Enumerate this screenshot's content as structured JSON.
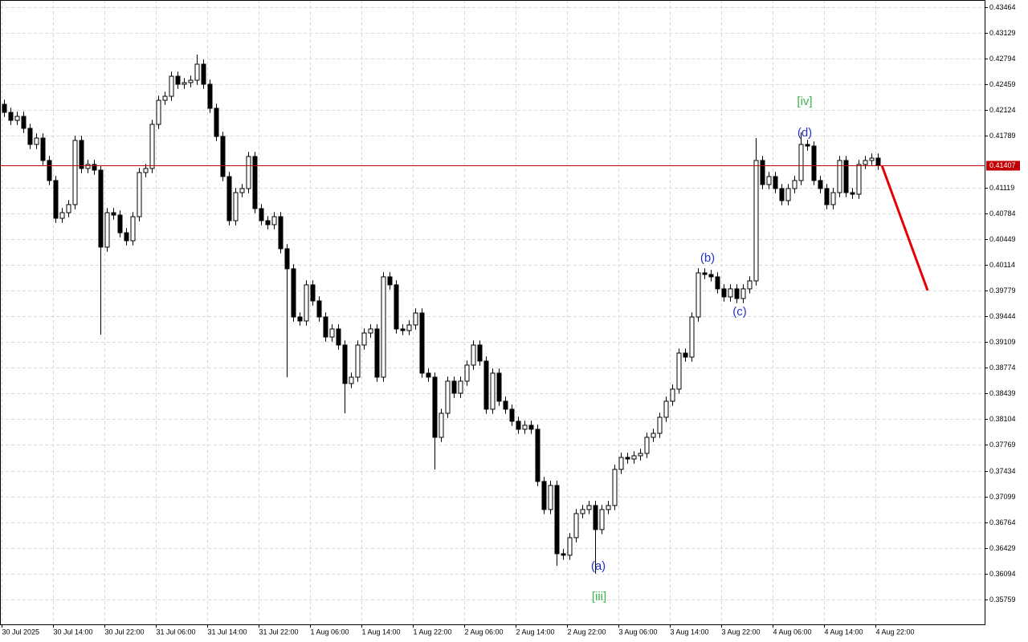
{
  "chart_data": {
    "type": "candlestick",
    "up_color": "#ffffff",
    "down_color": "#000000",
    "grid": true,
    "ylim": [
      0.35435,
      0.43558
    ],
    "yticks": [
      0.43464,
      0.43129,
      0.42794,
      0.42459,
      0.42124,
      0.41789,
      0.41119,
      0.40784,
      0.40449,
      0.40114,
      0.39779,
      0.39444,
      0.39109,
      0.38774,
      0.38439,
      0.38104,
      0.37769,
      0.37434,
      0.37099,
      0.36764,
      0.36429,
      0.36094,
      0.35759
    ],
    "categories": [
      "30 Jul 2025",
      null,
      null,
      null,
      null,
      null,
      null,
      null,
      "30 Jul 14:00",
      null,
      null,
      null,
      null,
      null,
      null,
      null,
      "30 Jul 22:00",
      null,
      null,
      null,
      null,
      null,
      null,
      null,
      "31 Jul 06:00",
      null,
      null,
      null,
      null,
      null,
      null,
      null,
      "31 Jul 14:00",
      null,
      null,
      null,
      null,
      null,
      null,
      null,
      "31 Jul 22:00",
      null,
      null,
      null,
      null,
      null,
      null,
      null,
      "1 Aug 06:00",
      null,
      null,
      null,
      null,
      null,
      null,
      null,
      "1 Aug 14:00",
      null,
      null,
      null,
      null,
      null,
      null,
      null,
      "1 Aug 22:00",
      null,
      null,
      null,
      null,
      null,
      null,
      null,
      "2 Aug 06:00",
      null,
      null,
      null,
      null,
      null,
      null,
      null,
      "2 Aug 14:00",
      null,
      null,
      null,
      null,
      null,
      null,
      null,
      "2 Aug 22:00",
      null,
      null,
      null,
      null,
      null,
      null,
      null,
      "3 Aug 06:00",
      null,
      null,
      null,
      null,
      null,
      null,
      null,
      "3 Aug 14:00",
      null,
      null,
      null,
      null,
      null,
      null,
      null,
      "3 Aug 22:00",
      null,
      null,
      null,
      null,
      null,
      null,
      null,
      "4 Aug 06:00",
      null,
      null,
      null,
      null,
      null,
      null,
      null,
      "4 Aug 14:00",
      null,
      null,
      null,
      null,
      null,
      null,
      null,
      "4 Aug 22:00"
    ],
    "open": [
      0.42201,
      0.42096,
      0.41992,
      0.42044,
      0.41888,
      0.41679,
      0.41762,
      0.4147,
      0.41209,
      0.40718,
      0.40791,
      0.40896,
      0.41731,
      0.41366,
      0.41418,
      0.41345,
      0.40343,
      0.40791,
      0.4076,
      0.4053,
      0.40426,
      0.40739,
      0.41313,
      0.41366,
      0.4194,
      0.42253,
      0.42305,
      0.42566,
      0.42462,
      0.42483,
      0.42514,
      0.42723,
      0.42462,
      0.42149,
      0.41783,
      0.41261,
      0.40687,
      0.41052,
      0.41105,
      0.41522,
      0.40844,
      0.40687,
      0.40635,
      0.40739,
      0.40322,
      0.40061,
      0.39434,
      0.39382,
      0.39852,
      0.39643,
      0.39434,
      0.39173,
      0.39278,
      0.39069,
      0.38568,
      0.38651,
      0.39069,
      0.39225,
      0.39278,
      0.38651,
      0.39956,
      0.39852,
      0.39278,
      0.39257,
      0.3933,
      0.39486,
      0.38703,
      0.38651,
      0.37868,
      0.38181,
      0.38599,
      0.38442,
      0.38599,
      0.38808,
      0.39069,
      0.3886,
      0.38234,
      0.38703,
      0.38338,
      0.38234,
      0.38077,
      0.37973,
      0.38025,
      0.37973,
      0.37294,
      0.36929,
      0.37242,
      0.36354,
      0.36334,
      0.36563,
      0.36876,
      0.36929,
      0.36981,
      0.36668,
      0.36929,
      0.36981,
      0.37451,
      0.37607,
      0.37586,
      0.37628,
      0.37659,
      0.37868,
      0.3792,
      0.38129,
      0.38338,
      0.38495,
      0.38964,
      0.38912,
      0.39434,
      0.40008,
      0.39987,
      0.39956,
      0.398,
      0.39695,
      0.398,
      0.39674,
      0.398,
      0.39904,
      0.4147,
      0.41157,
      0.41261,
      0.41105,
      0.40948,
      0.41105,
      0.41209,
      0.41679,
      0.41658,
      0.41209,
      0.41105,
      0.40896,
      0.41052,
      0.4147,
      0.41052,
      0.41031,
      0.41418,
      0.4147,
      0.41501
    ],
    "high": [
      0.42261,
      0.42156,
      0.42104,
      0.42104,
      0.41948,
      0.41822,
      0.41822,
      0.4153,
      0.41269,
      0.40851,
      0.40956,
      0.41791,
      0.41791,
      0.41478,
      0.41478,
      0.41405,
      0.40851,
      0.40851,
      0.4082,
      0.4059,
      0.40799,
      0.41373,
      0.41426,
      0.42,
      0.42313,
      0.42365,
      0.42626,
      0.42626,
      0.42543,
      0.42574,
      0.42848,
      0.42783,
      0.42522,
      0.42209,
      0.41843,
      0.41321,
      0.41112,
      0.41165,
      0.41582,
      0.41582,
      0.40904,
      0.40747,
      0.40799,
      0.40799,
      0.40382,
      0.40121,
      0.39494,
      0.39912,
      0.39912,
      0.39703,
      0.39494,
      0.39338,
      0.39338,
      0.39129,
      0.38711,
      0.39129,
      0.39285,
      0.39338,
      0.39338,
      0.40016,
      0.40016,
      0.39912,
      0.39338,
      0.3939,
      0.39546,
      0.39546,
      0.38763,
      0.38711,
      0.38241,
      0.38659,
      0.38659,
      0.38659,
      0.38868,
      0.39129,
      0.39129,
      0.3892,
      0.38763,
      0.38763,
      0.38398,
      0.38294,
      0.38137,
      0.38085,
      0.38085,
      0.38033,
      0.37354,
      0.37302,
      0.37302,
      0.36414,
      0.36623,
      0.36936,
      0.36989,
      0.37041,
      0.37041,
      0.36989,
      0.37041,
      0.37511,
      0.37667,
      0.37667,
      0.37688,
      0.37719,
      0.37928,
      0.3798,
      0.38189,
      0.38398,
      0.38555,
      0.39024,
      0.39024,
      0.39494,
      0.40068,
      0.40068,
      0.40047,
      0.40016,
      0.3986,
      0.3986,
      0.3986,
      0.3986,
      0.39964,
      0.41762,
      0.4153,
      0.41321,
      0.41321,
      0.41165,
      0.41165,
      0.41269,
      0.41835,
      0.41739,
      0.41718,
      0.41269,
      0.41165,
      0.41112,
      0.4153,
      0.4153,
      0.41112,
      0.41478,
      0.4153,
      0.41561,
      0.41561
    ],
    "low": [
      0.42036,
      0.41932,
      0.41932,
      0.41828,
      0.41619,
      0.41619,
      0.4141,
      0.41149,
      0.40658,
      0.40658,
      0.40731,
      0.40836,
      0.41306,
      0.41306,
      0.41285,
      0.39205,
      0.40283,
      0.407,
      0.4047,
      0.40366,
      0.40366,
      0.40679,
      0.41253,
      0.41306,
      0.4188,
      0.42193,
      0.42245,
      0.42402,
      0.42402,
      0.42423,
      0.42454,
      0.42402,
      0.42089,
      0.41723,
      0.41201,
      0.40627,
      0.40627,
      0.40992,
      0.41045,
      0.40784,
      0.40627,
      0.40575,
      0.40575,
      0.40262,
      0.38651,
      0.39374,
      0.39322,
      0.39322,
      0.39583,
      0.39374,
      0.39113,
      0.39113,
      0.39009,
      0.38181,
      0.38508,
      0.38591,
      0.39009,
      0.39165,
      0.38591,
      0.38591,
      0.39792,
      0.39218,
      0.39197,
      0.39197,
      0.3927,
      0.38643,
      0.38591,
      0.37451,
      0.37808,
      0.38121,
      0.38382,
      0.38382,
      0.38539,
      0.38748,
      0.388,
      0.38174,
      0.38174,
      0.38278,
      0.38174,
      0.38017,
      0.37913,
      0.37913,
      0.37913,
      0.37234,
      0.36869,
      0.36869,
      0.36198,
      0.36274,
      0.36274,
      0.36503,
      0.36816,
      0.36869,
      0.36094,
      0.36608,
      0.36869,
      0.36921,
      0.37391,
      0.37526,
      0.37526,
      0.37568,
      0.37599,
      0.37808,
      0.3786,
      0.38069,
      0.38278,
      0.38435,
      0.38852,
      0.38852,
      0.39374,
      0.39927,
      0.39896,
      0.3974,
      0.39635,
      0.39635,
      0.39614,
      0.39614,
      0.3974,
      0.39844,
      0.41097,
      0.41097,
      0.41045,
      0.40888,
      0.40888,
      0.41045,
      0.41149,
      0.41598,
      0.41149,
      0.41045,
      0.40836,
      0.40836,
      0.40992,
      0.40992,
      0.40971,
      0.40971,
      0.41358,
      0.4141,
      0.41347
    ],
    "close": [
      0.42096,
      0.41992,
      0.42044,
      0.41888,
      0.41679,
      0.41762,
      0.4147,
      0.41209,
      0.40718,
      0.40791,
      0.40896,
      0.41731,
      0.41366,
      0.41418,
      0.41345,
      0.40343,
      0.40791,
      0.4076,
      0.4053,
      0.40426,
      0.40739,
      0.41313,
      0.41366,
      0.4194,
      0.42253,
      0.42305,
      0.42566,
      0.42462,
      0.42483,
      0.42514,
      0.42723,
      0.42462,
      0.42149,
      0.41783,
      0.41261,
      0.40687,
      0.41052,
      0.41105,
      0.41522,
      0.40844,
      0.40687,
      0.40635,
      0.40739,
      0.40322,
      0.40061,
      0.39434,
      0.39382,
      0.39852,
      0.39643,
      0.39434,
      0.39173,
      0.39278,
      0.39069,
      0.38568,
      0.38651,
      0.39069,
      0.39225,
      0.39278,
      0.38651,
      0.39956,
      0.39852,
      0.39278,
      0.39257,
      0.3933,
      0.39486,
      0.38703,
      0.38651,
      0.37868,
      0.38181,
      0.38599,
      0.38442,
      0.38599,
      0.38808,
      0.39069,
      0.3886,
      0.38234,
      0.38703,
      0.38338,
      0.38234,
      0.38077,
      0.37973,
      0.38025,
      0.37973,
      0.37294,
      0.36929,
      0.37242,
      0.36354,
      0.36334,
      0.36563,
      0.36876,
      0.36929,
      0.36981,
      0.36668,
      0.36929,
      0.36981,
      0.37451,
      0.37607,
      0.37586,
      0.37628,
      0.37659,
      0.37868,
      0.3792,
      0.38129,
      0.38338,
      0.38495,
      0.38964,
      0.38912,
      0.39434,
      0.40008,
      0.39987,
      0.39956,
      0.398,
      0.39695,
      0.398,
      0.39674,
      0.398,
      0.39904,
      0.4147,
      0.41157,
      0.41261,
      0.41105,
      0.40948,
      0.41105,
      0.41209,
      0.41679,
      0.41658,
      0.41209,
      0.41105,
      0.40896,
      0.41052,
      0.4147,
      0.41052,
      0.41031,
      0.41418,
      0.4147,
      0.41501,
      0.41407
    ],
    "current_price": 0.41407,
    "current_price_color": "#c00000",
    "forecast_line": {
      "color": "#e60000",
      "values": [
        0.41407,
        0.39779
      ]
    },
    "annotations": [
      {
        "text": "[iv]",
        "color": "#3cb44b"
      },
      {
        "text": "(d)",
        "color": "#2233cc"
      },
      {
        "text": "(b)",
        "color": "#2233cc"
      },
      {
        "text": "(c)",
        "color": "#2233cc"
      },
      {
        "text": "(a)",
        "color": "#2233cc"
      },
      {
        "text": "[iii]",
        "color": "#3cb44b"
      }
    ]
  }
}
